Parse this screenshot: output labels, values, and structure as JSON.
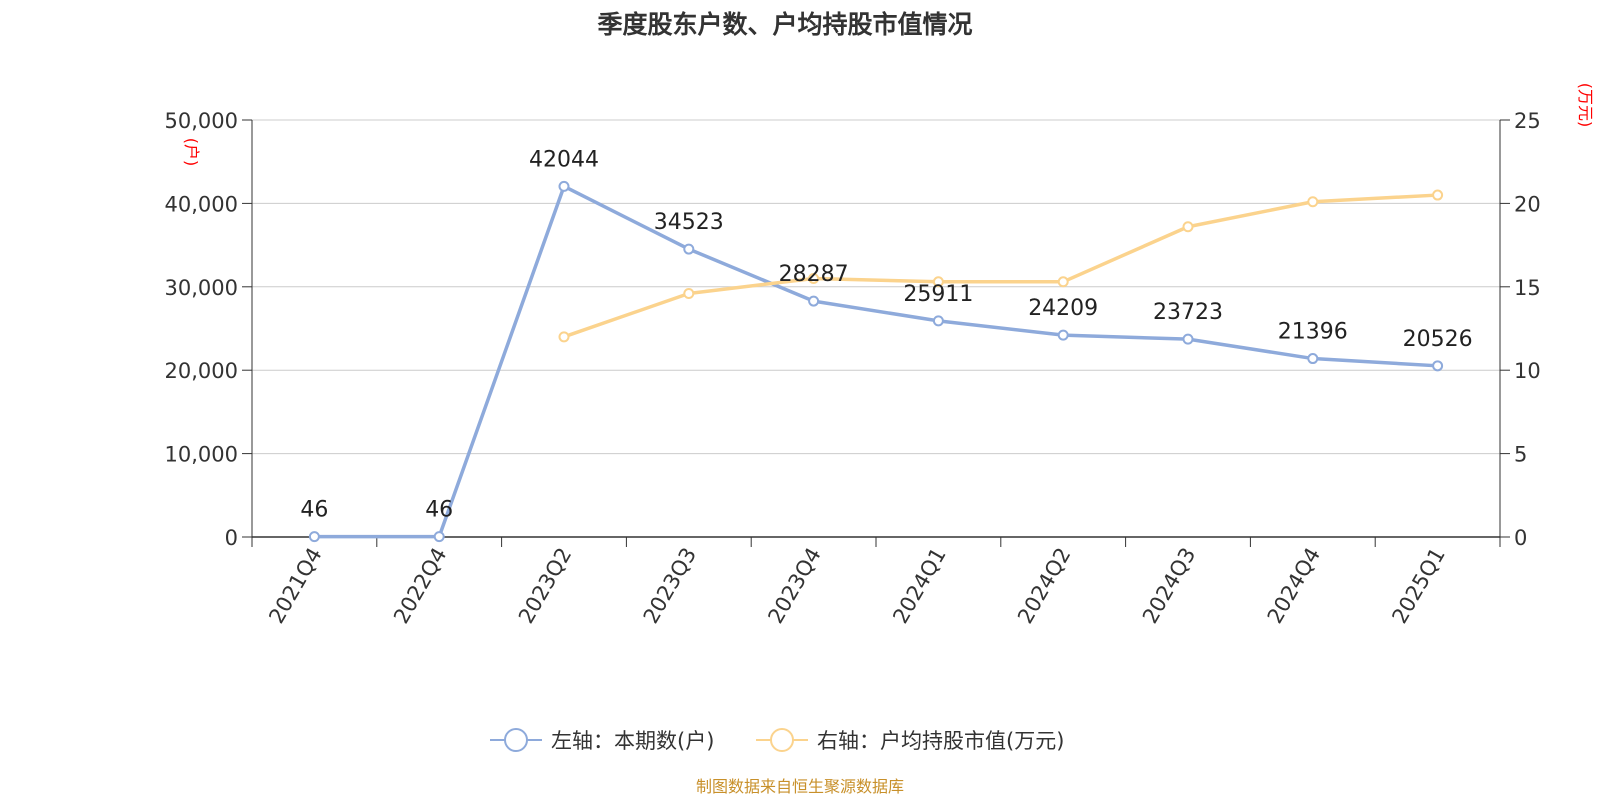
{
  "chart_data": {
    "type": "line",
    "title": "季度股东户数、户均持股市值情况",
    "categories": [
      "2021Q4",
      "2022Q4",
      "2023Q2",
      "2023Q3",
      "2023Q4",
      "2024Q1",
      "2024Q2",
      "2024Q3",
      "2024Q4",
      "2025Q1"
    ],
    "left_axis": {
      "unit_label": "(户)",
      "ylim": [
        0,
        50000
      ],
      "ticks": [
        0,
        10000,
        20000,
        30000,
        40000,
        50000
      ],
      "tick_labels": [
        "0",
        "10,000",
        "20,000",
        "30,000",
        "40,000",
        "50,000"
      ]
    },
    "right_axis": {
      "unit_label": "(万元)",
      "ylim": [
        0,
        25
      ],
      "ticks": [
        0,
        5,
        10,
        15,
        20,
        25
      ],
      "tick_labels": [
        "0",
        "5",
        "10",
        "15",
        "20",
        "25"
      ]
    },
    "series": [
      {
        "name": "左轴：本期数(户)",
        "axis": "left",
        "color": "#8eaadb",
        "values": [
          46,
          46,
          42044,
          34523,
          28287,
          25911,
          24209,
          23723,
          21396,
          20526
        ],
        "data_labels": [
          "46",
          "46",
          "42044",
          "34523",
          "28287",
          "25911",
          "24209",
          "23723",
          "21396",
          "20526"
        ]
      },
      {
        "name": "右轴：户均持股市值(万元)",
        "axis": "right",
        "color": "#fbd38d",
        "values": [
          null,
          null,
          12.0,
          14.6,
          15.5,
          15.3,
          15.3,
          18.6,
          20.1,
          20.5
        ]
      }
    ],
    "grid": true,
    "legend_position": "bottom-center",
    "source": "制图数据来自恒生聚源数据库"
  },
  "colors": {
    "axis_unit": "#ff0000",
    "source_text": "#c8902a",
    "grid": "#cccccc",
    "axis": "#333333"
  }
}
